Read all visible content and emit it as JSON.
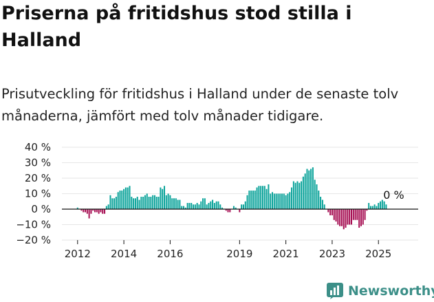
{
  "title": "Priserna på fritidshus stod stilla i Halland",
  "subtitle": "Prisutveckling för fritidshus i Halland under de senaste tolv månaderna, jämfört med tolv månader tidigare.",
  "brand": {
    "name": "Newsworthy",
    "icon": "newsworthy-chart-logo-icon"
  },
  "colors": {
    "positive": "#0aa39a",
    "negative": "#a60d52",
    "axis": "#111111",
    "grid": "#e6e6e6",
    "brand": "#3c8f88"
  },
  "chart_data": {
    "type": "bar",
    "ylim": [
      -20,
      40
    ],
    "yticks": [
      -20,
      -10,
      0,
      10,
      20,
      30,
      40
    ],
    "ytick_labels": [
      "−20 %",
      "−10 %",
      "0 %",
      "10 %",
      "20 %",
      "30 %",
      "40 %"
    ],
    "xticks": [
      {
        "label": "2012",
        "x": "2012-01"
      },
      {
        "label": "2014",
        "x": "2014-01"
      },
      {
        "label": "2016",
        "x": "2016-01"
      },
      {
        "label": "2019",
        "x": "2019-01"
      },
      {
        "label": "2021",
        "x": "2021-01"
      },
      {
        "label": "2023",
        "x": "2023-01"
      },
      {
        "label": "2025",
        "x": "2025-01"
      }
    ],
    "grid": true,
    "last_value_label": "0 %",
    "x_start": "2012-01",
    "values": [
      1,
      0,
      -1,
      -2,
      -2,
      -3,
      -6,
      -3,
      -1,
      -2,
      -2,
      -3,
      -2,
      -3,
      -3,
      2,
      3,
      9,
      7,
      7,
      8,
      11,
      12,
      12,
      13,
      14,
      14,
      15,
      8,
      7,
      7,
      8,
      6,
      8,
      8,
      9,
      10,
      8,
      8,
      9,
      9,
      8,
      8,
      14,
      13,
      15,
      9,
      10,
      9,
      7,
      7,
      7,
      6,
      6,
      2,
      2,
      1,
      4,
      4,
      4,
      3,
      3,
      4,
      3,
      5,
      7,
      7,
      3,
      4,
      5,
      6,
      4,
      5,
      5,
      3,
      1,
      0,
      -1,
      -2,
      -2,
      0,
      2,
      1,
      0,
      -2,
      3,
      3,
      5,
      9,
      12,
      12,
      12,
      12,
      14,
      15,
      15,
      15,
      15,
      13,
      16,
      10,
      11,
      10,
      10,
      10,
      10,
      10,
      10,
      9,
      10,
      11,
      14,
      18,
      17,
      18,
      17,
      18,
      21,
      23,
      26,
      25,
      26,
      27,
      19,
      16,
      12,
      8,
      6,
      3,
      0,
      -2,
      -4,
      -4,
      -7,
      -8,
      -10,
      -11,
      -11,
      -13,
      -12,
      -10,
      -10,
      -10,
      -7,
      -7,
      -7,
      -12,
      -11,
      -10,
      -7,
      -1,
      4,
      2,
      2,
      3,
      2,
      4,
      5,
      6,
      5,
      3,
      0
    ]
  }
}
